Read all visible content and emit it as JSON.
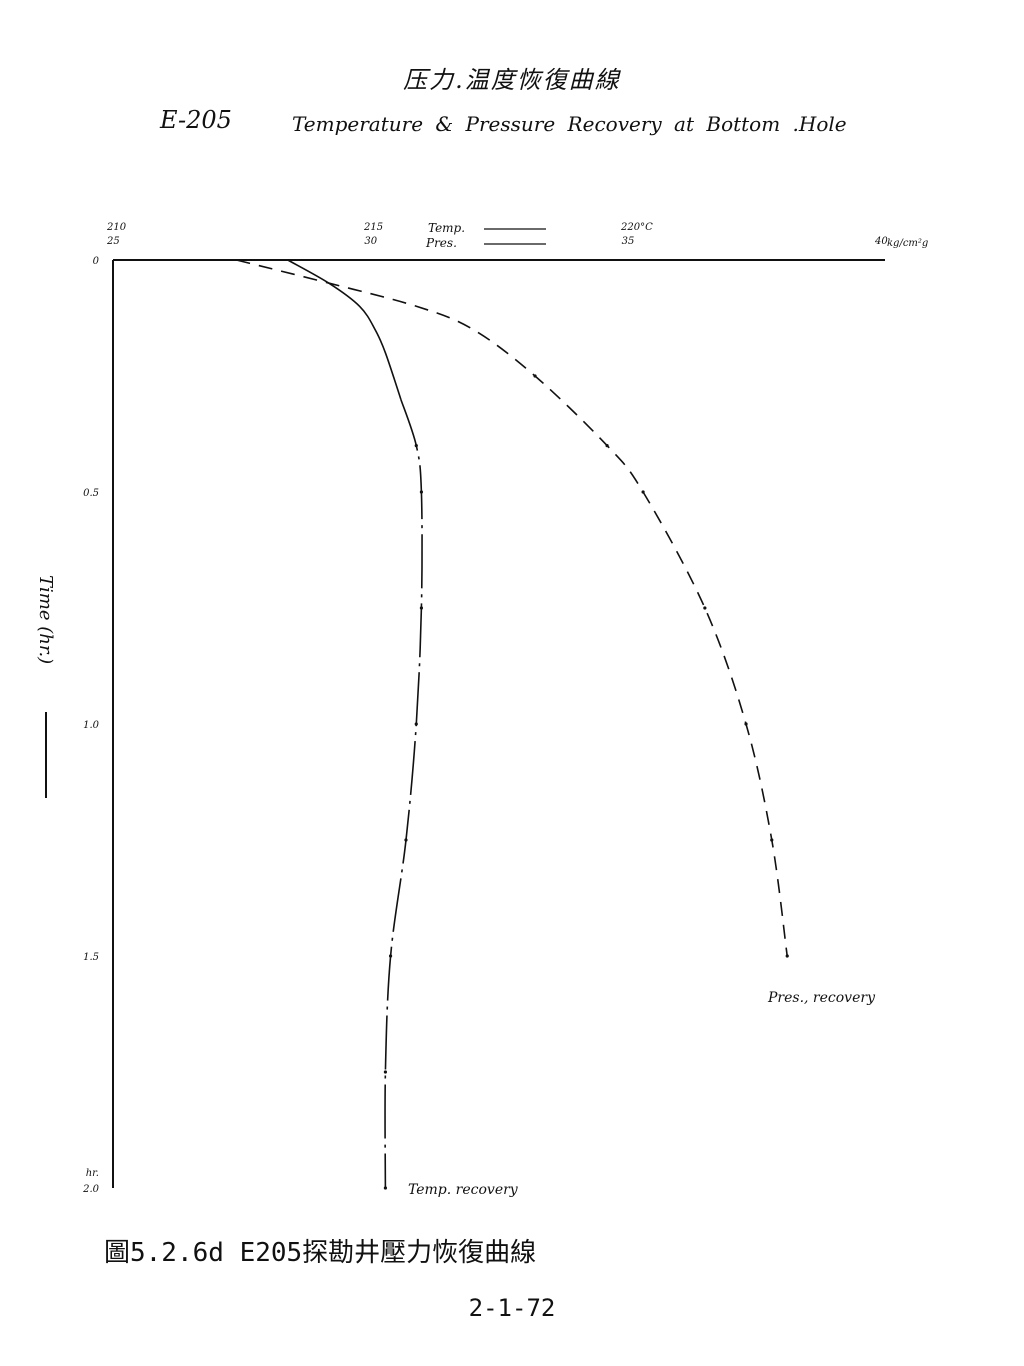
{
  "header": {
    "title_cn": "压力.温度恢復曲線",
    "well_id": "E-205",
    "title_en": "Temperature & Pressure Recovery at Bottom .Hole"
  },
  "footer": {
    "caption": "圖5.2.6d E205探勘井壓力恢復曲線",
    "page_number": "2-1-72"
  },
  "chart_data": {
    "type": "line",
    "title": "Temperature & Pressure Recovery at Bottom .Hole",
    "y_axis": {
      "label": "Time (hr.)",
      "unit": "hr.",
      "range": [
        0,
        2.0
      ],
      "inverted": true,
      "ticks": [
        "0",
        "0.5",
        "1.0",
        "1.5",
        "2.0"
      ]
    },
    "x_axis_temp": {
      "legend_label": "Temp.",
      "range": [
        210,
        225.6
      ],
      "ticks": [
        {
          "value": 210,
          "label": "210"
        },
        {
          "value": 215,
          "label": "215"
        },
        {
          "value": 220,
          "label": "220°C"
        }
      ]
    },
    "x_axis_pres": {
      "legend_label": "Pres.",
      "unit": "kg/cm²g",
      "range": [
        25,
        40
      ],
      "ticks": [
        {
          "value": 25,
          "label": "25"
        },
        {
          "value": 30,
          "label": "30"
        },
        {
          "value": 35,
          "label": "35"
        },
        {
          "value": 40,
          "label": "40"
        }
      ]
    },
    "series": [
      {
        "name": "Temp. recovery",
        "axis": "temp",
        "style": "solid-then-dashdot",
        "points": [
          {
            "t": 0.0,
            "v": 213.4
          },
          {
            "t": 0.05,
            "v": 214.2
          },
          {
            "t": 0.1,
            "v": 214.8
          },
          {
            "t": 0.15,
            "v": 215.1
          },
          {
            "t": 0.2,
            "v": 215.3
          },
          {
            "t": 0.3,
            "v": 215.6
          },
          {
            "t": 0.4,
            "v": 215.9
          },
          {
            "t": 0.5,
            "v": 216.0
          },
          {
            "t": 0.75,
            "v": 216.0
          },
          {
            "t": 1.0,
            "v": 215.9
          },
          {
            "t": 1.25,
            "v": 215.7
          },
          {
            "t": 1.5,
            "v": 215.4
          },
          {
            "t": 1.75,
            "v": 215.3
          },
          {
            "t": 2.0,
            "v": 215.3
          }
        ]
      },
      {
        "name": "Pres. recovery",
        "axis": "pres",
        "style": "dashed",
        "points": [
          {
            "t": 0.0,
            "v": 27.4
          },
          {
            "t": 0.05,
            "v": 29.2
          },
          {
            "t": 0.1,
            "v": 30.9
          },
          {
            "t": 0.15,
            "v": 32.0
          },
          {
            "t": 0.25,
            "v": 33.2
          },
          {
            "t": 0.4,
            "v": 34.6
          },
          {
            "t": 0.5,
            "v": 35.3
          },
          {
            "t": 0.75,
            "v": 36.5
          },
          {
            "t": 1.0,
            "v": 37.3
          },
          {
            "t": 1.25,
            "v": 37.8
          },
          {
            "t": 1.5,
            "v": 38.1
          }
        ]
      }
    ],
    "annotations": [
      "Temp. recovery",
      "Pres., recovery"
    ]
  }
}
